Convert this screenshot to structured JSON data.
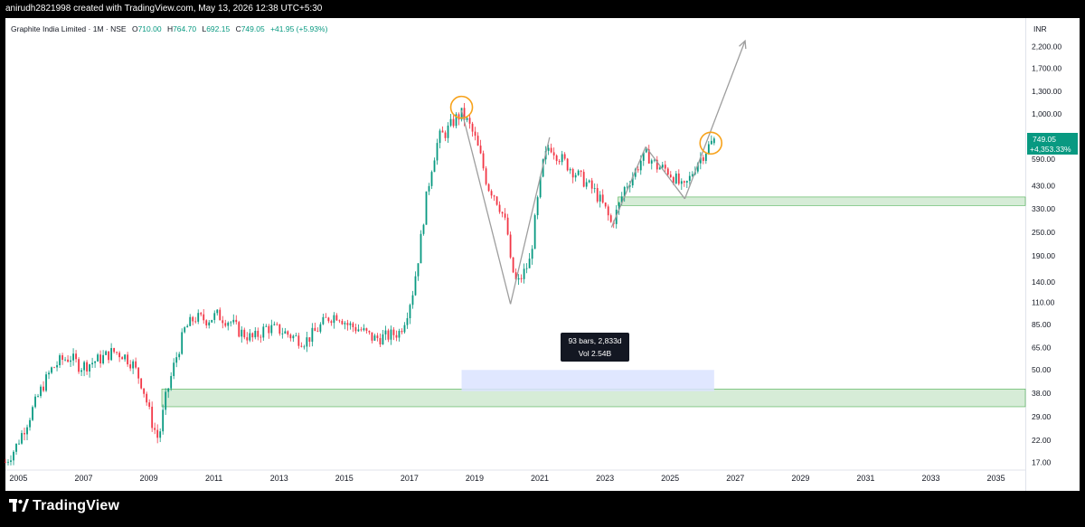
{
  "header": {
    "creator_line": "anirudh2821998 created with TradingView.com, May 13, 2026 12:38 UTC+5:30"
  },
  "legend": {
    "symbol": "Graphite India Limited · 1M · NSE",
    "open_label": "O",
    "open_value": "710.00",
    "high_label": "H",
    "high_value": "764.70",
    "low_label": "L",
    "low_value": "692.15",
    "close_label": "C",
    "close_value": "749.05",
    "change": "+41.95 (+5.93%)"
  },
  "price_axis": {
    "currency": "INR",
    "last_price": "749.05",
    "last_change_pct": "+4,353.33%"
  },
  "measure_tooltip": {
    "line1": "93 bars, 2,833d",
    "line2": "Vol 2.54B"
  },
  "brand": {
    "name": "TradingView"
  },
  "colors": {
    "up": "#089981",
    "down": "#f23645",
    "zone_fill": "#c8e6c9",
    "zone_border": "#4caf50",
    "measure_fill": "#dbe3ff",
    "trendline": "#9e9e9e",
    "circle": "#f7a21b",
    "price_tag": "#089981"
  },
  "chart_data": {
    "type": "candlestick",
    "scale": "log",
    "title": "Graphite India Limited · 1M · NSE",
    "y_ticks": [
      {
        "label": "2,200.00",
        "value": 2200
      },
      {
        "label": "1,700.00",
        "value": 1700
      },
      {
        "label": "1,300.00",
        "value": 1300
      },
      {
        "label": "1,000.00",
        "value": 1000
      },
      {
        "label": "590.00",
        "value": 590
      },
      {
        "label": "430.00",
        "value": 430
      },
      {
        "label": "330.00",
        "value": 330
      },
      {
        "label": "250.00",
        "value": 250
      },
      {
        "label": "190.00",
        "value": 190
      },
      {
        "label": "140.00",
        "value": 140
      },
      {
        "label": "110.00",
        "value": 110
      },
      {
        "label": "85.00",
        "value": 85
      },
      {
        "label": "65.00",
        "value": 65
      },
      {
        "label": "50.00",
        "value": 50
      },
      {
        "label": "38.00",
        "value": 38
      },
      {
        "label": "29.00",
        "value": 29
      },
      {
        "label": "22.00",
        "value": 22
      },
      {
        "label": "17.00",
        "value": 17
      }
    ],
    "x_ticks": [
      "2005",
      "2007",
      "2009",
      "2011",
      "2013",
      "2015",
      "2017",
      "2019",
      "2021",
      "2023",
      "2025",
      "2027",
      "2029",
      "2031",
      "2033",
      "2035"
    ],
    "x_range": [
      2004.6,
      2035.9
    ],
    "y_range": [
      15.5,
      3000
    ],
    "price_path": [
      [
        2004.6,
        17
      ],
      [
        2004.9,
        20
      ],
      [
        2005.3,
        28
      ],
      [
        2005.7,
        40
      ],
      [
        2006.0,
        50
      ],
      [
        2006.3,
        56
      ],
      [
        2006.6,
        58
      ],
      [
        2006.9,
        52
      ],
      [
        2007.2,
        54
      ],
      [
        2007.6,
        58
      ],
      [
        2007.9,
        62
      ],
      [
        2008.2,
        60
      ],
      [
        2008.5,
        54
      ],
      [
        2008.8,
        42
      ],
      [
        2009.1,
        27
      ],
      [
        2009.3,
        22
      ],
      [
        2009.5,
        35
      ],
      [
        2009.8,
        55
      ],
      [
        2010.1,
        80
      ],
      [
        2010.4,
        92
      ],
      [
        2010.8,
        90
      ],
      [
        2011.1,
        95
      ],
      [
        2011.5,
        88
      ],
      [
        2011.8,
        78
      ],
      [
        2012.2,
        72
      ],
      [
        2012.6,
        82
      ],
      [
        2013.0,
        80
      ],
      [
        2013.4,
        74
      ],
      [
        2013.8,
        70
      ],
      [
        2014.1,
        78
      ],
      [
        2014.5,
        92
      ],
      [
        2014.8,
        96
      ],
      [
        2015.1,
        85
      ],
      [
        2015.5,
        80
      ],
      [
        2015.9,
        72
      ],
      [
        2016.3,
        74
      ],
      [
        2016.7,
        78
      ],
      [
        2016.9,
        95
      ],
      [
        2017.1,
        125
      ],
      [
        2017.3,
        200
      ],
      [
        2017.5,
        360
      ],
      [
        2017.7,
        560
      ],
      [
        2017.9,
        760
      ],
      [
        2018.1,
        800
      ],
      [
        2018.4,
        940
      ],
      [
        2018.6,
        1000
      ],
      [
        2018.8,
        900
      ],
      [
        2019.0,
        760
      ],
      [
        2019.2,
        590
      ],
      [
        2019.4,
        430
      ],
      [
        2019.6,
        390
      ],
      [
        2019.8,
        330
      ],
      [
        2020.0,
        260
      ],
      [
        2020.1,
        175
      ],
      [
        2020.3,
        135
      ],
      [
        2020.5,
        155
      ],
      [
        2020.7,
        180
      ],
      [
        2020.9,
        330
      ],
      [
        2021.1,
        560
      ],
      [
        2021.3,
        700
      ],
      [
        2021.5,
        630
      ],
      [
        2021.8,
        560
      ],
      [
        2022.1,
        500
      ],
      [
        2022.4,
        450
      ],
      [
        2022.7,
        400
      ],
      [
        2023.0,
        330
      ],
      [
        2023.2,
        275
      ],
      [
        2023.4,
        330
      ],
      [
        2023.6,
        420
      ],
      [
        2023.9,
        500
      ],
      [
        2024.1,
        580
      ],
      [
        2024.3,
        620
      ],
      [
        2024.6,
        540
      ],
      [
        2024.9,
        520
      ],
      [
        2025.2,
        460
      ],
      [
        2025.4,
        410
      ],
      [
        2025.6,
        470
      ],
      [
        2025.8,
        560
      ],
      [
        2026.0,
        620
      ],
      [
        2026.2,
        690
      ],
      [
        2026.37,
        749.05
      ]
    ],
    "candle_stats": {
      "open": 710.0,
      "high": 764.7,
      "low": 692.15,
      "close": 749.05
    },
    "zones": [
      {
        "label": "support-zone-upper",
        "x_start": 2023.4,
        "low": 342,
        "high": 378
      },
      {
        "label": "support-zone-lower",
        "x_start": 2009.4,
        "low": 32.5,
        "high": 40
      }
    ],
    "measure": {
      "x_start": 2018.6,
      "x_end": 2026.35,
      "low": 39,
      "high": 50
    },
    "trendlines": [
      [
        [
          2018.6,
          1040
        ],
        [
          2020.1,
          108
        ]
      ],
      [
        [
          2020.1,
          108
        ],
        [
          2021.3,
          760
        ]
      ],
      [
        [
          2023.2,
          265
        ],
        [
          2024.25,
          680
        ]
      ],
      [
        [
          2024.25,
          680
        ],
        [
          2025.45,
          370
        ]
      ],
      [
        [
          2025.45,
          370
        ],
        [
          2027.3,
          2350
        ]
      ]
    ],
    "circles": [
      [
        2018.6,
        1080
      ],
      [
        2026.25,
        710
      ]
    ]
  }
}
